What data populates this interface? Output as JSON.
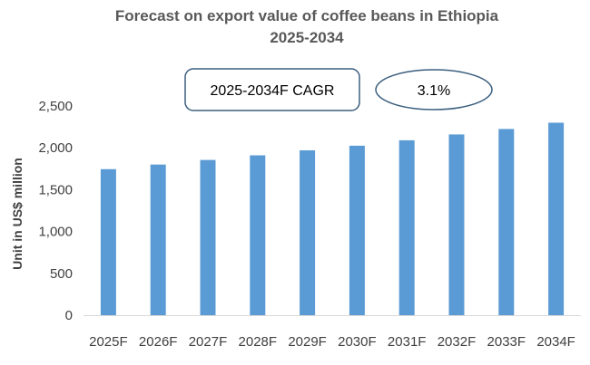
{
  "chart_data": {
    "type": "bar",
    "title_line1": "Forecast on export value of coffee beans in Ethiopia",
    "title_line2": "2025-2034",
    "ylabel": "Unit in US$ million",
    "xlabel": "",
    "categories": [
      "2025F",
      "2026F",
      "2027F",
      "2028F",
      "2029F",
      "2030F",
      "2031F",
      "2032F",
      "2033F",
      "2034F"
    ],
    "values": [
      1745,
      1800,
      1855,
      1910,
      1970,
      2025,
      2090,
      2160,
      2225,
      2300
    ],
    "ylim": [
      0,
      2500
    ],
    "yticks": [
      0,
      500,
      1000,
      1500,
      2000,
      2500
    ],
    "ytick_labels": [
      "0",
      "500",
      "1,000",
      "1,500",
      "2,000",
      "2,500"
    ],
    "bar_color": "#5b9bd5",
    "annotations": {
      "cagr_label": "2025-2034F CAGR",
      "cagr_value": "3.1%"
    }
  }
}
